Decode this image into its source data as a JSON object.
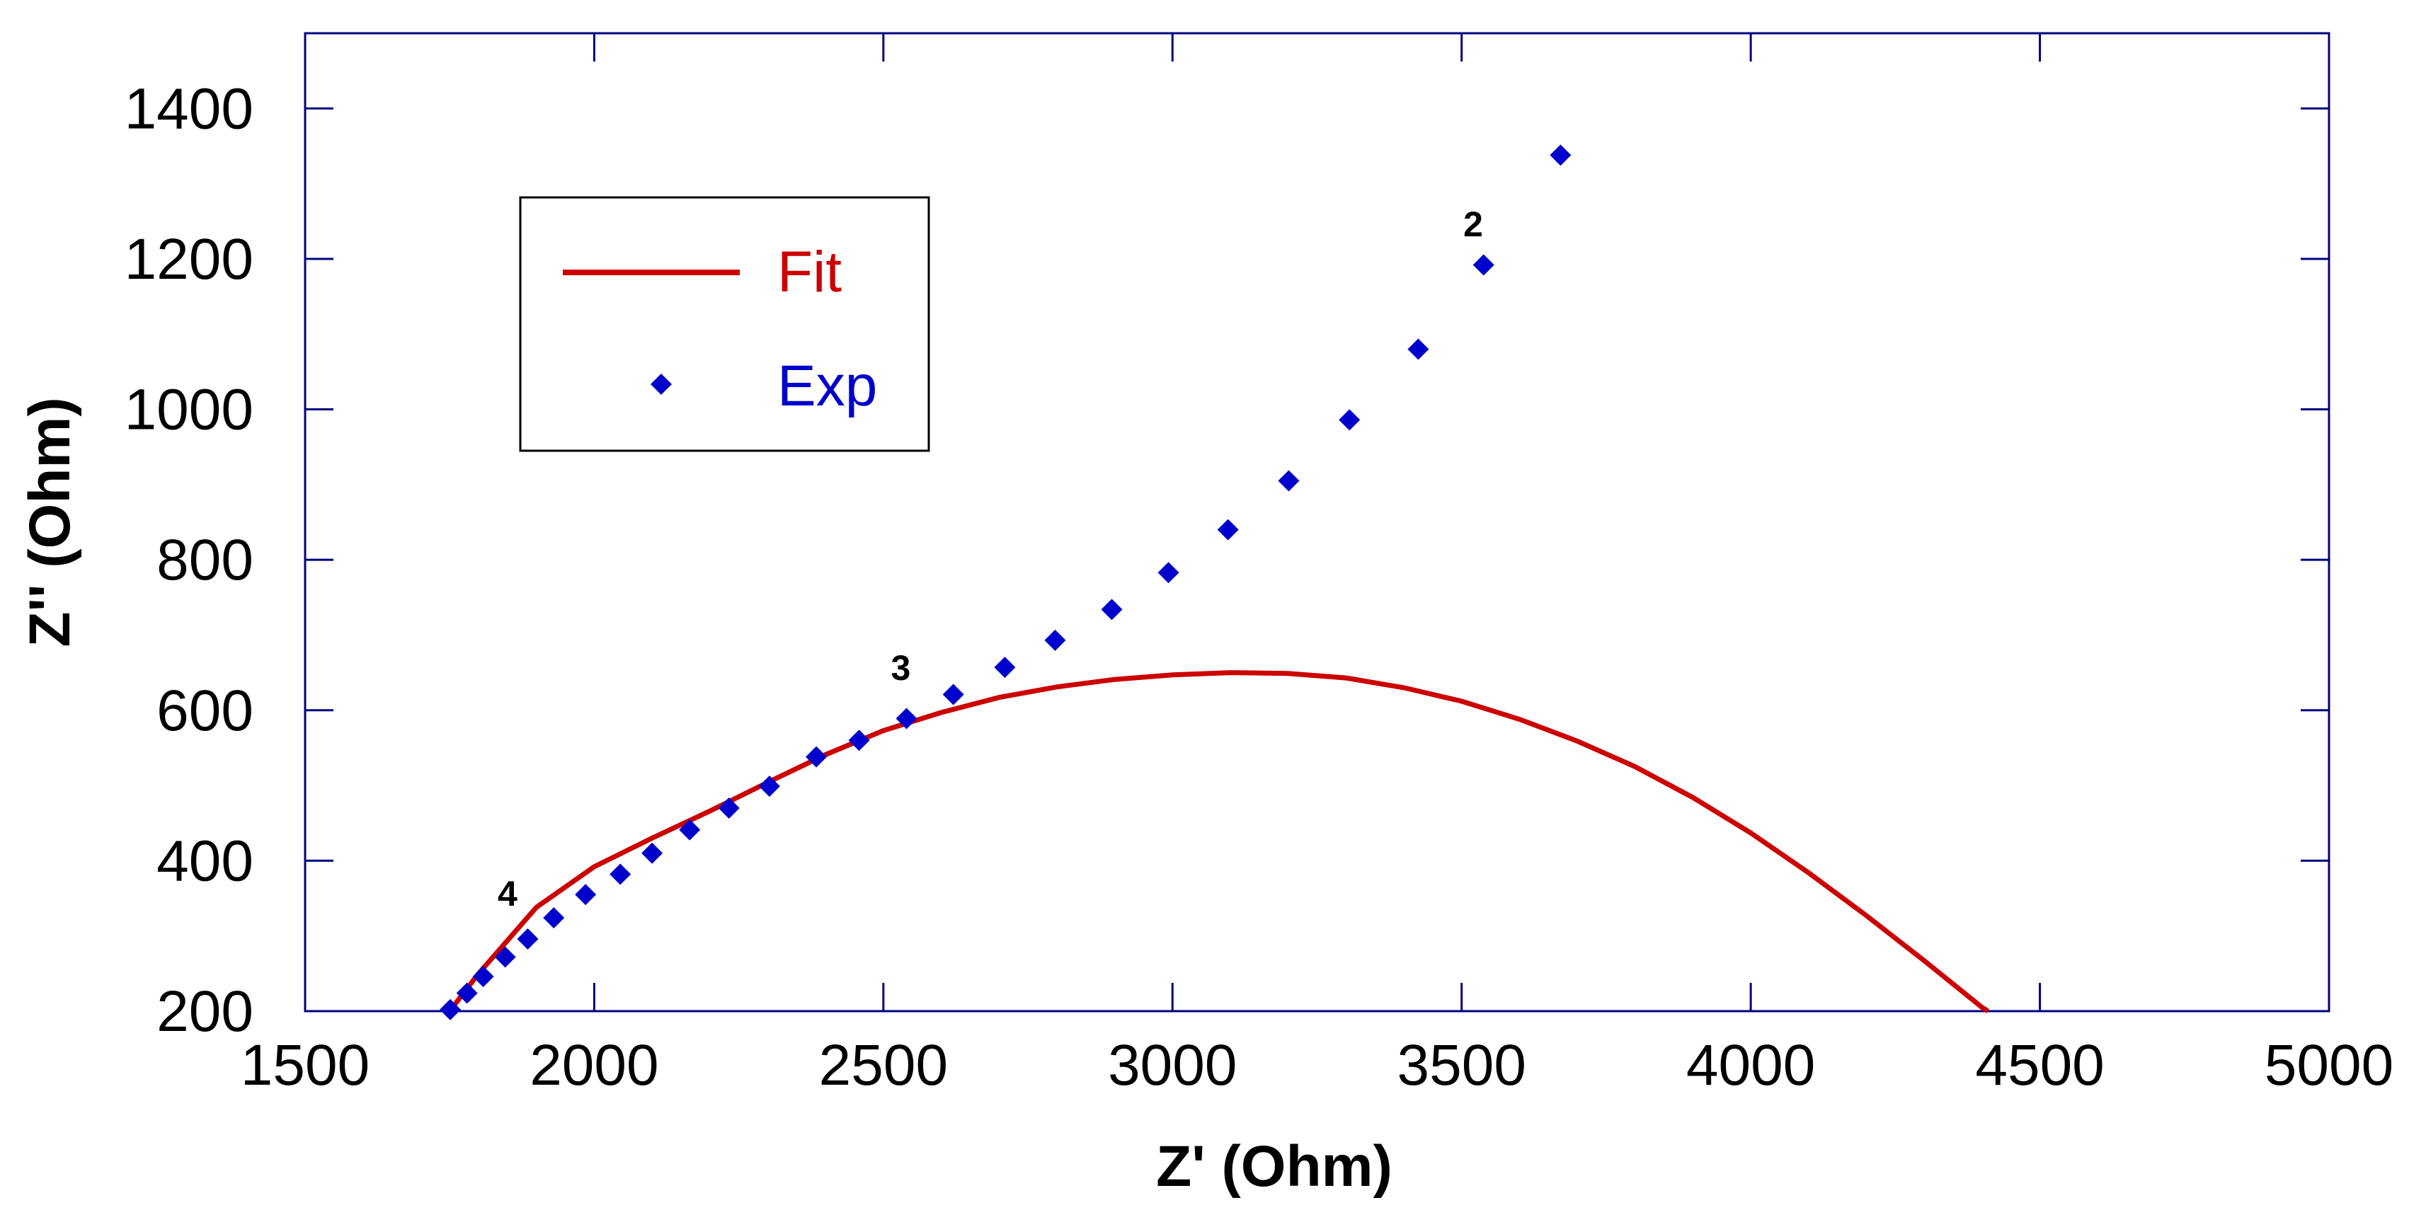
{
  "chart_data": {
    "type": "scatter",
    "title": "",
    "xlabel": "Z' (Ohm)",
    "ylabel": "Z'' (Ohm)",
    "xlim": [
      1500,
      5000
    ],
    "ylim": [
      200,
      1500
    ],
    "xticks": [
      1500,
      2000,
      2500,
      3000,
      3500,
      4000,
      4500,
      5000
    ],
    "yticks": [
      200,
      400,
      600,
      800,
      1000,
      1200,
      1400
    ],
    "grid": false,
    "legend_position": "top-left",
    "colors": {
      "fit": "#cc0000",
      "exp": "#0000cc",
      "axis": "#000080"
    },
    "series": [
      {
        "name": "Fit",
        "kind": "line",
        "note": "semicircle arc",
        "points": [
          [
            1750,
            200
          ],
          [
            1800,
            250
          ],
          [
            1900,
            338
          ],
          [
            2000,
            392
          ],
          [
            2100,
            430
          ],
          [
            2200,
            466
          ],
          [
            2300,
            504
          ],
          [
            2400,
            541
          ],
          [
            2500,
            573
          ],
          [
            2600,
            597
          ],
          [
            2700,
            617
          ],
          [
            2800,
            631
          ],
          [
            2900,
            641
          ],
          [
            3000,
            647
          ],
          [
            3100,
            650
          ],
          [
            3200,
            649
          ],
          [
            3300,
            643
          ],
          [
            3400,
            630
          ],
          [
            3500,
            612
          ],
          [
            3600,
            588
          ],
          [
            3700,
            559
          ],
          [
            3800,
            525
          ],
          [
            3900,
            484
          ],
          [
            4000,
            437
          ],
          [
            4100,
            384
          ],
          [
            4200,
            327
          ],
          [
            4300,
            267
          ],
          [
            4400,
            205
          ],
          [
            4410,
            200
          ]
        ]
      },
      {
        "name": "Exp",
        "kind": "scatter",
        "marker": "diamond",
        "points": [
          [
            1751,
            202
          ],
          [
            1780,
            224
          ],
          [
            1808,
            246
          ],
          [
            1846,
            272
          ],
          [
            1885,
            296
          ],
          [
            1930,
            324
          ],
          [
            1985,
            355
          ],
          [
            2045,
            382
          ],
          [
            2100,
            410
          ],
          [
            2165,
            441
          ],
          [
            2233,
            470
          ],
          [
            2303,
            499
          ],
          [
            2384,
            538
          ],
          [
            2458,
            560
          ],
          [
            2540,
            589
          ],
          [
            2621,
            621
          ],
          [
            2710,
            657
          ],
          [
            2797,
            693
          ],
          [
            2895,
            734
          ],
          [
            2993,
            783
          ],
          [
            3096,
            840
          ],
          [
            3201,
            905
          ],
          [
            3306,
            986
          ],
          [
            3425,
            1080
          ],
          [
            3538,
            1192
          ],
          [
            3671,
            1338
          ]
        ]
      }
    ],
    "annotations": [
      {
        "text": "4",
        "x": 1850,
        "y": 340
      },
      {
        "text": "3",
        "x": 2530,
        "y": 640
      },
      {
        "text": "2",
        "x": 3520,
        "y": 1230
      }
    ],
    "legend": [
      {
        "label": "Fit",
        "series": "Fit"
      },
      {
        "label": "Exp",
        "series": "Exp"
      }
    ]
  }
}
